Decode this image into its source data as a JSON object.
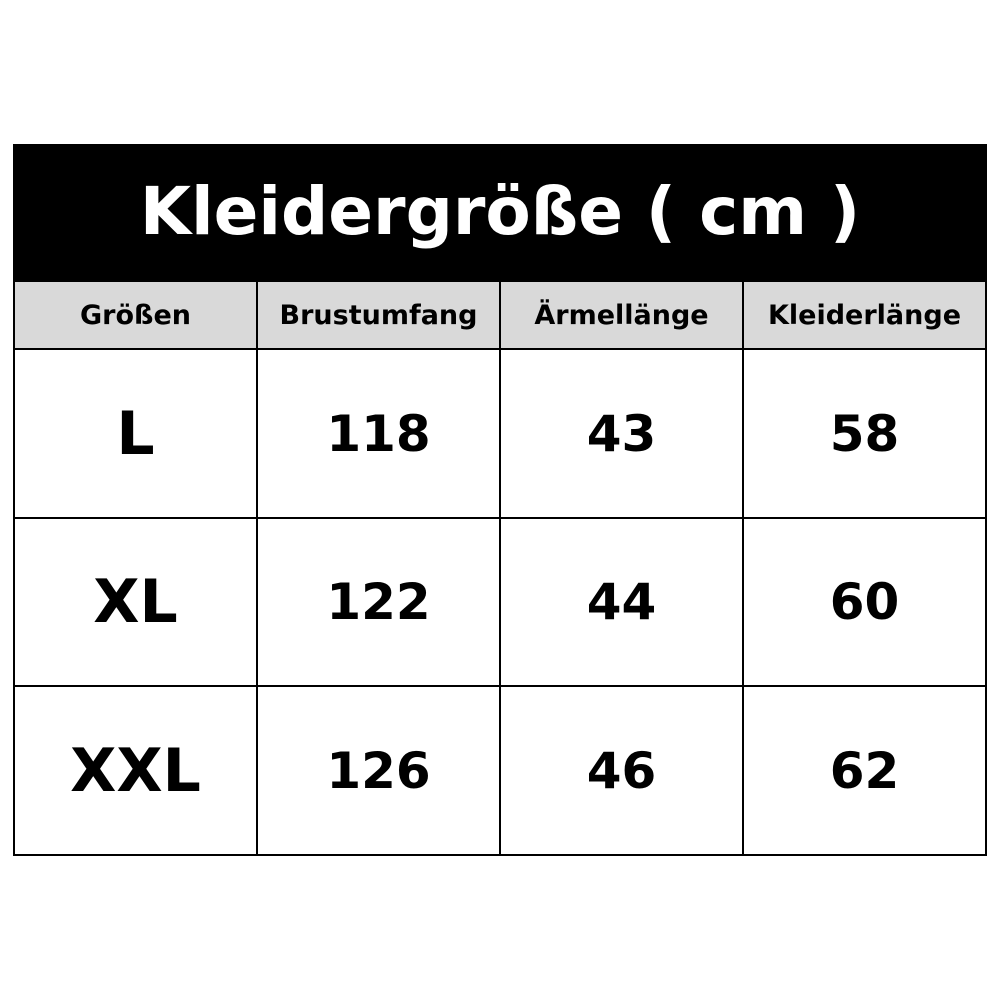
{
  "title": "Kleidergröße ( cm )",
  "headers": [
    "Größen",
    "Brustumfang",
    "Ärmellänge",
    "Kleiderlänge"
  ],
  "rows": [
    {
      "size": "L",
      "brustumfang": "118",
      "aermellaenge": "43",
      "kleiderlaenge": "58"
    },
    {
      "size": "XL",
      "brustumfang": "122",
      "aermellaenge": "44",
      "kleiderlaenge": "60"
    },
    {
      "size": "XXL",
      "brustumfang": "126",
      "aermellaenge": "46",
      "kleiderlaenge": "62"
    }
  ],
  "colors": {
    "title_background": "#000000",
    "title_text": "#ffffff",
    "header_background": "#d9d9d9",
    "border": "#000000"
  }
}
